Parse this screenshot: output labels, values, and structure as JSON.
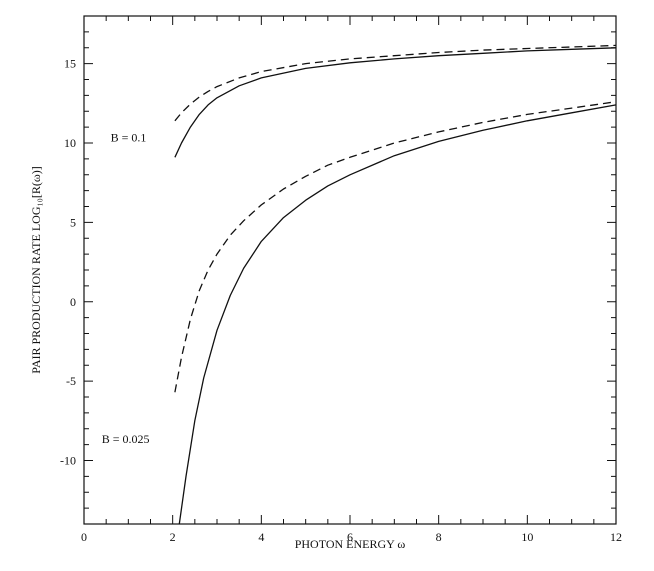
{
  "chart_data": {
    "type": "line",
    "title": "",
    "xlabel": "PHOTON ENERGY  ω",
    "ylabel": "PAIR PRODUCTION RATE  LOG₁₀[R(ω)]",
    "xlim": [
      0,
      12
    ],
    "ylim": [
      -14,
      18
    ],
    "x_ticks": [
      0,
      2,
      4,
      6,
      8,
      10,
      12
    ],
    "x_tick_labels": [
      "0",
      "2",
      "4",
      "6",
      "8",
      "10",
      "12"
    ],
    "y_ticks": [
      -10,
      -5,
      0,
      5,
      10,
      15
    ],
    "y_tick_labels": [
      "-10",
      "-5",
      "0",
      "5",
      "10",
      "15"
    ],
    "grid": false,
    "annotations": [
      {
        "text": "B = 0.1",
        "x": 0.6,
        "y": 10.1
      },
      {
        "text": "B = 0.025",
        "x": 0.4,
        "y": -8.9
      }
    ],
    "series": [
      {
        "style": "solid",
        "x": [
          2.05,
          2.2,
          2.4,
          2.6,
          2.8,
          3.0,
          3.5,
          4.0,
          5.0,
          6.0,
          7.0,
          8.0,
          9.0,
          10.0,
          11.0,
          12.0
        ],
        "y": [
          9.1,
          10.0,
          11.0,
          11.8,
          12.4,
          12.85,
          13.6,
          14.1,
          14.7,
          15.05,
          15.3,
          15.5,
          15.65,
          15.8,
          15.9,
          16.0
        ]
      },
      {
        "style": "dashed",
        "x": [
          2.05,
          2.2,
          2.4,
          2.6,
          2.8,
          3.0,
          3.5,
          4.0,
          5.0,
          6.0,
          7.0,
          8.0,
          9.0,
          10.0,
          11.0,
          12.0
        ],
        "y": [
          11.4,
          11.9,
          12.45,
          12.9,
          13.25,
          13.55,
          14.1,
          14.5,
          15.0,
          15.3,
          15.5,
          15.7,
          15.85,
          15.95,
          16.05,
          16.15
        ]
      },
      {
        "style": "solid",
        "x": [
          2.15,
          2.3,
          2.5,
          2.7,
          3.0,
          3.3,
          3.6,
          4.0,
          4.5,
          5.0,
          5.5,
          6.0,
          7.0,
          8.0,
          9.0,
          10.0,
          11.0,
          12.0
        ],
        "y": [
          -14.0,
          -11.0,
          -7.5,
          -4.8,
          -1.8,
          0.4,
          2.1,
          3.8,
          5.3,
          6.4,
          7.3,
          8.0,
          9.2,
          10.1,
          10.8,
          11.4,
          11.9,
          12.4
        ]
      },
      {
        "style": "dashed",
        "x": [
          2.05,
          2.2,
          2.4,
          2.6,
          2.8,
          3.0,
          3.3,
          3.6,
          4.0,
          4.5,
          5.0,
          5.5,
          6.0,
          7.0,
          8.0,
          9.0,
          10.0,
          11.0,
          12.0
        ],
        "y": [
          -5.7,
          -3.5,
          -1.1,
          0.7,
          2.0,
          3.0,
          4.2,
          5.1,
          6.1,
          7.1,
          7.9,
          8.6,
          9.1,
          10.0,
          10.7,
          11.3,
          11.8,
          12.2,
          12.6
        ]
      }
    ]
  }
}
